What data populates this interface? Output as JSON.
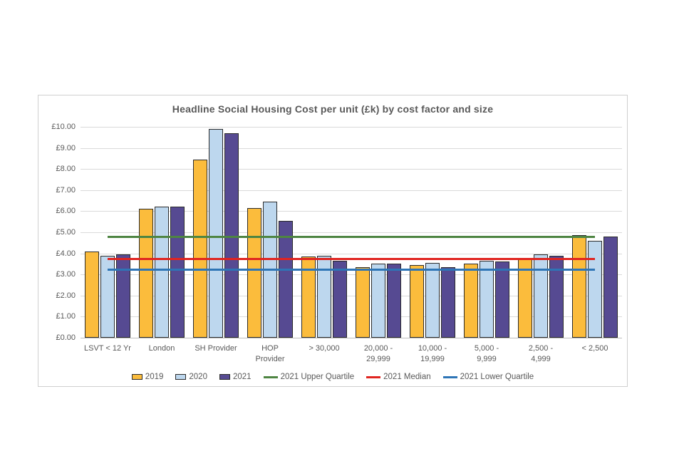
{
  "chart_data": {
    "type": "bar",
    "title": "Headline Social Housing Cost per unit (£k) by cost factor and size",
    "xlabel": "",
    "ylabel": "",
    "ylim": [
      0,
      10
    ],
    "y_tick_step": 1,
    "grid": true,
    "legend_position": "bottom",
    "y_tick_labels": [
      "£10.00",
      "£9.00",
      "£8.00",
      "£7.00",
      "£6.00",
      "£5.00",
      "£4.00",
      "£3.00",
      "£2.00",
      "£1.00",
      "£0.00"
    ],
    "categories": [
      "LSVT < 12 Yr",
      "London",
      "SH Provider",
      "HOP\nProvider",
      "> 30,000",
      "20,000 -\n29,999",
      "10,000 -\n19,999",
      "5,000 -\n9,999",
      "2,500 -\n4,999",
      "< 2,500"
    ],
    "series": [
      {
        "name": "2019",
        "color": "#FBBC3C",
        "values": [
          4.1,
          6.1,
          8.45,
          6.15,
          3.85,
          3.35,
          3.45,
          3.5,
          3.8,
          4.85
        ]
      },
      {
        "name": "2020",
        "color": "#BDD7EE",
        "values": [
          3.9,
          6.2,
          9.9,
          6.45,
          3.9,
          3.5,
          3.55,
          3.65,
          3.95,
          4.6
        ]
      },
      {
        "name": "2021",
        "color": "#564A92",
        "values": [
          3.95,
          6.2,
          9.7,
          5.55,
          3.65,
          3.5,
          3.35,
          3.6,
          3.9,
          4.8
        ]
      }
    ],
    "reference_lines": [
      {
        "name": "2021 Upper Quartile",
        "color": "#4E8542",
        "value": 4.78
      },
      {
        "name": "2021 Median",
        "color": "#E02420",
        "value": 3.73
      },
      {
        "name": "2021 Lower Quartile",
        "color": "#2E75B6",
        "value": 3.2
      }
    ]
  }
}
